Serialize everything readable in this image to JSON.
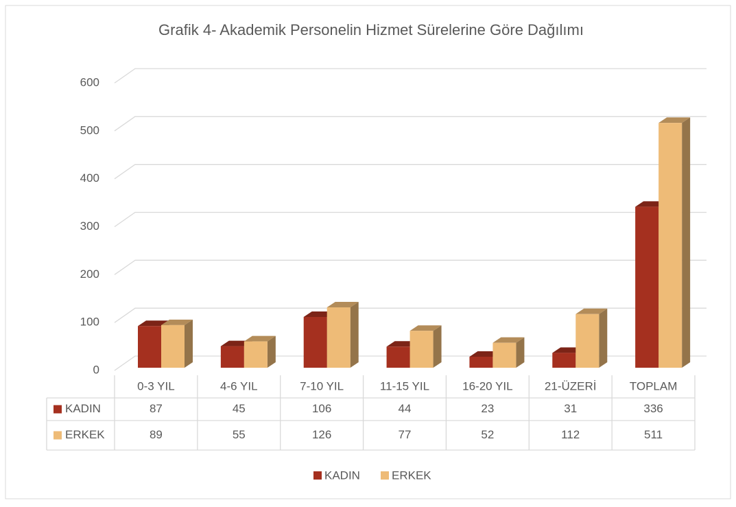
{
  "chart_data": {
    "type": "bar3d",
    "title": "Grafik 4- Akademik Personelin Hizmet Sürelerine Göre Dağılımı",
    "categories": [
      "0-3 YIL",
      "4-6 YIL",
      "7-10 YIL",
      "11-15 YIL",
      "16-20 YIL",
      "21-ÜZERİ",
      "TOPLAM"
    ],
    "series": [
      {
        "name": "KADIN",
        "color": "#a5301f",
        "values": [
          87,
          45,
          106,
          44,
          23,
          31,
          336
        ]
      },
      {
        "name": "ERKEK",
        "color": "#eebb77",
        "values": [
          89,
          55,
          126,
          77,
          52,
          112,
          511
        ]
      }
    ],
    "ylim": [
      0,
      600
    ],
    "yticks": [
      0,
      100,
      200,
      300,
      400,
      500,
      600
    ],
    "grid": true,
    "legend": "bottom",
    "data_table": true
  }
}
